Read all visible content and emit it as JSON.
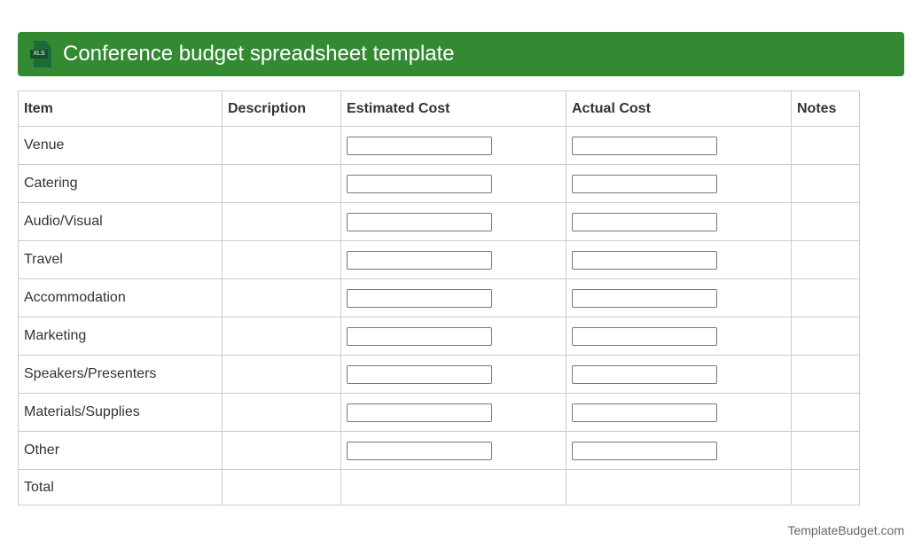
{
  "header": {
    "title": "Conference budget spreadsheet template",
    "icon": "xls-file-icon",
    "icon_text": "XLS",
    "color": "#338a33"
  },
  "table": {
    "columns": [
      "Item",
      "Description",
      "Estimated Cost",
      "Actual Cost",
      "Notes"
    ],
    "rows": [
      "Venue",
      "Catering",
      "Audio/Visual",
      "Travel",
      "Accommodation",
      "Marketing",
      "Speakers/Presenters",
      "Materials/Supplies",
      "Other"
    ],
    "total_label": "Total"
  },
  "footer": {
    "text": "TemplateBudget.com"
  }
}
